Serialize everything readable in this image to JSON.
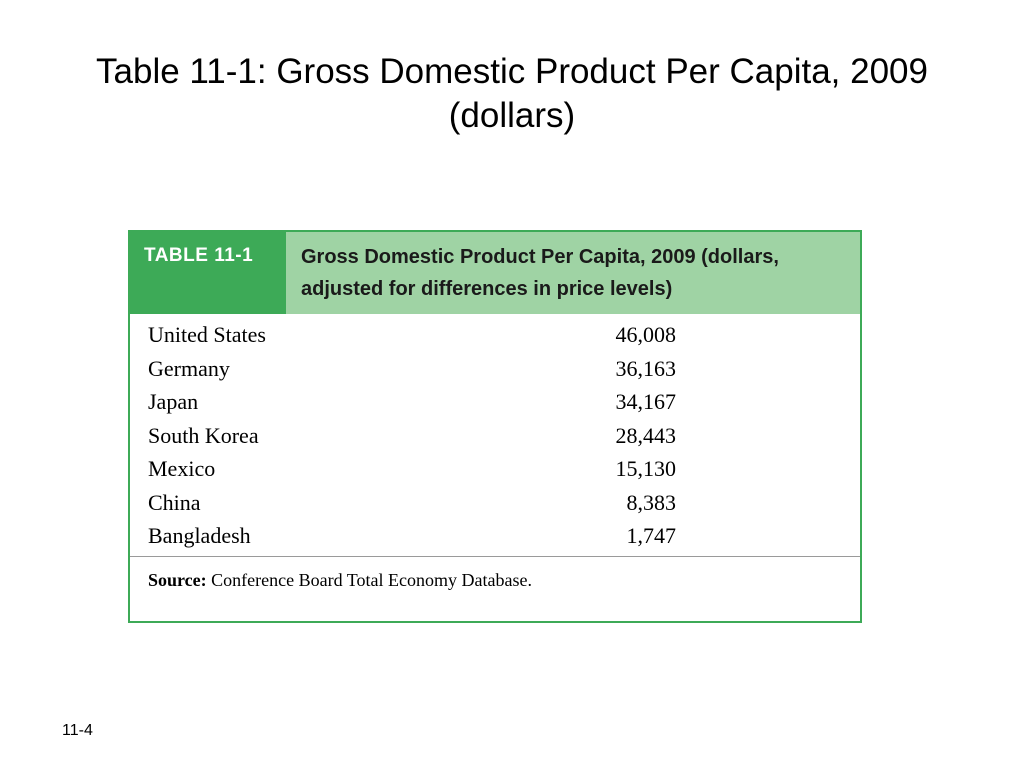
{
  "slide": {
    "title_line1": "Table 11-1: Gross Domestic Product Per Capita, 2009",
    "title_line2": "(dollars)",
    "slide_number": "11-4"
  },
  "table": {
    "label": "TABLE 11-1",
    "caption_line1": "Gross Domestic Product Per Capita, 2009 (dollars,",
    "caption_line2": "adjusted for differences in price levels)",
    "rows": [
      {
        "country": "United States",
        "value": "46,008"
      },
      {
        "country": "Germany",
        "value": "36,163"
      },
      {
        "country": "Japan",
        "value": "34,167"
      },
      {
        "country": "South Korea",
        "value": "28,443"
      },
      {
        "country": "Mexico",
        "value": "15,130"
      },
      {
        "country": "China",
        "value": "8,383"
      },
      {
        "country": "Bangladesh",
        "value": "1,747"
      }
    ],
    "source_label": "Source:",
    "source_text": "Conference Board Total Economy Database."
  },
  "colors": {
    "accent_green": "#3daa57",
    "light_green": "#9fd3a4"
  }
}
